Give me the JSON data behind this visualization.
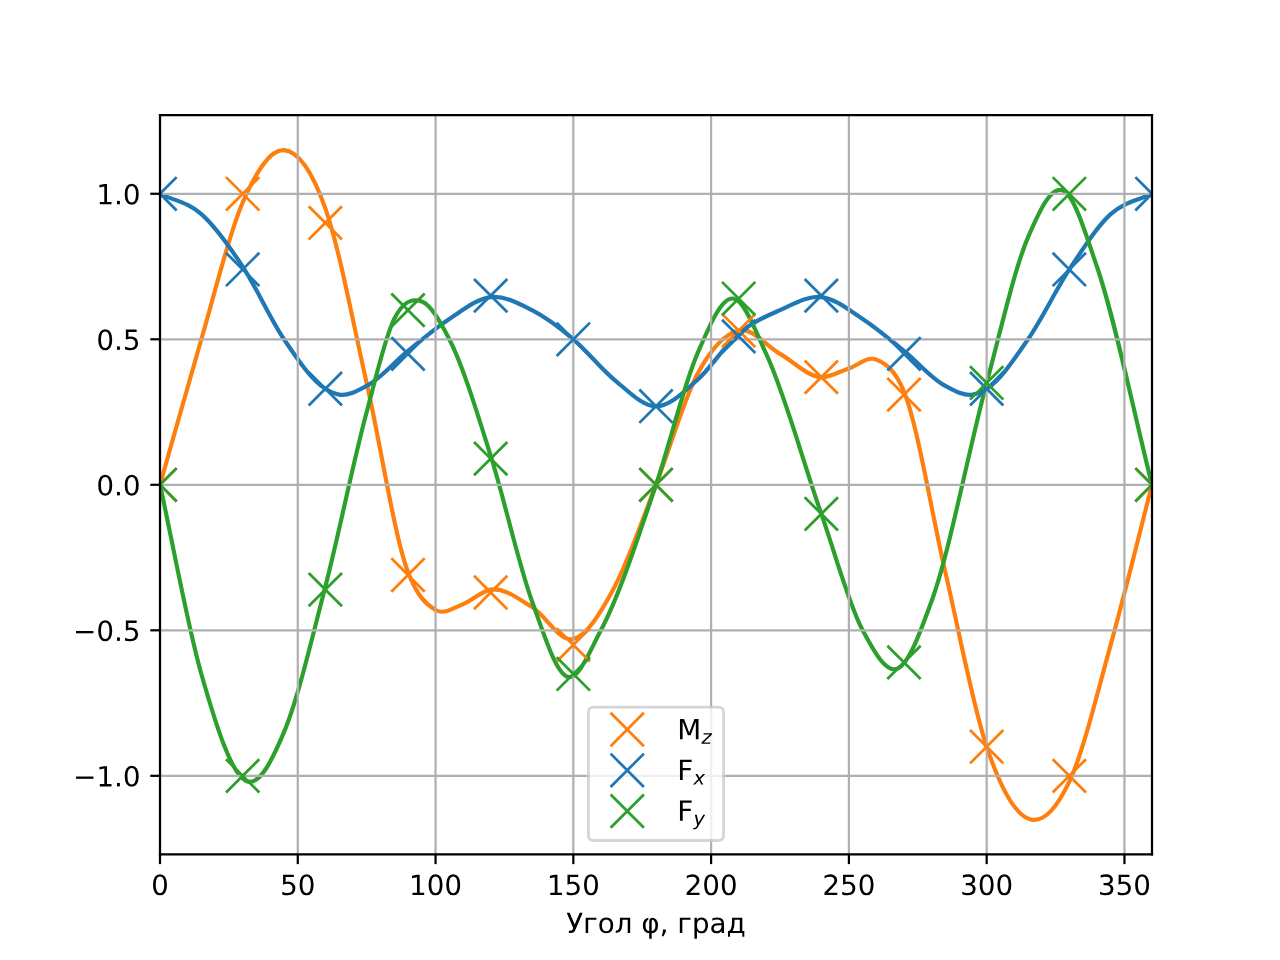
{
  "chart_data": {
    "type": "line",
    "xlabel": "Угол φ, град",
    "xlim": [
      0,
      360
    ],
    "xticks": [
      0,
      50,
      100,
      150,
      200,
      250,
      300,
      350
    ],
    "ylim": [
      -1.27,
      1.27
    ],
    "yticks": [
      {
        "value": -1.0,
        "label": "−1.0"
      },
      {
        "value": -0.5,
        "label": "−0.5"
      },
      {
        "value": 0.0,
        "label": "0.0"
      },
      {
        "value": 0.5,
        "label": "0.5"
      },
      {
        "value": 1.0,
        "label": "1.0"
      }
    ],
    "grid": true,
    "legend": "bottom",
    "marker": "none",
    "line_style": "solid",
    "series": [
      {
        "color": "#ff7f0e",
        "x": [
          0,
          15,
          30,
          45,
          60,
          75,
          90,
          100,
          110,
          120,
          135,
          150,
          165,
          180,
          195,
          210,
          225,
          240,
          250,
          260,
          270,
          285,
          300,
          316,
          330,
          345,
          360
        ],
        "values": [
          0,
          0.5,
          0.97,
          1.15,
          0.95,
          0.35,
          -0.3,
          -0.43,
          -0.41,
          -0.36,
          -0.42,
          -0.53,
          -0.35,
          0,
          0.38,
          0.53,
          0.45,
          0.37,
          0.4,
          0.43,
          0.32,
          -0.3,
          -0.9,
          -1.15,
          -1.02,
          -0.55,
          0
        ]
      },
      {
        "color": "#1f77b4",
        "x": [
          0,
          15,
          30,
          45,
          60,
          65,
          75,
          90,
          105,
          120,
          135,
          150,
          165,
          180,
          195,
          210,
          225,
          240,
          255,
          270,
          285,
          295,
          300,
          315,
          330,
          345,
          360
        ],
        "values": [
          1.0,
          0.93,
          0.75,
          0.5,
          0.33,
          0.31,
          0.34,
          0.46,
          0.57,
          0.645,
          0.6,
          0.5,
          0.36,
          0.27,
          0.36,
          0.52,
          0.6,
          0.645,
          0.57,
          0.46,
          0.34,
          0.31,
          0.33,
          0.5,
          0.74,
          0.93,
          1.0
        ]
      },
      {
        "color": "#2ca02c",
        "x": [
          0,
          15,
          32,
          45,
          60,
          75,
          85,
          95,
          105,
          120,
          135,
          148,
          160,
          180,
          195,
          208,
          220,
          240,
          255,
          268,
          280,
          300,
          315,
          328,
          340,
          360
        ],
        "values": [
          0,
          -0.65,
          -1.02,
          -0.85,
          -0.35,
          0.25,
          0.57,
          0.63,
          0.5,
          0.1,
          -0.4,
          -0.66,
          -0.5,
          0,
          0.45,
          0.64,
          0.45,
          -0.1,
          -0.5,
          -0.63,
          -0.4,
          0.35,
          0.85,
          1.01,
          0.75,
          0
        ]
      },
      {
        "type": "scatter",
        "name": "M$_{z}$",
        "color": "#ff7f0e",
        "marker": "cross",
        "x": [
          0,
          30,
          60,
          90,
          120,
          150,
          180,
          210,
          240,
          270,
          300,
          330,
          360
        ],
        "values": [
          0,
          1.0,
          0.9,
          -0.31,
          -0.37,
          -0.55,
          0,
          0.53,
          0.37,
          0.31,
          -0.9,
          -1.0,
          0
        ]
      },
      {
        "type": "scatter",
        "name": "F$_{x}$",
        "color": "#1f77b4",
        "marker": "cross",
        "x": [
          0,
          30,
          60,
          90,
          120,
          150,
          180,
          210,
          240,
          270,
          300,
          330,
          360
        ],
        "values": [
          1.0,
          0.74,
          0.33,
          0.45,
          0.65,
          0.5,
          0.27,
          0.51,
          0.65,
          0.45,
          0.33,
          0.74,
          1.0
        ]
      },
      {
        "type": "scatter",
        "name": "F$_{y}$",
        "color": "#2ca02c",
        "marker": "cross",
        "x": [
          0,
          30,
          60,
          90,
          120,
          150,
          180,
          210,
          240,
          270,
          300,
          330,
          360
        ],
        "values": [
          0,
          -1.0,
          -0.36,
          0.6,
          0.09,
          -0.65,
          0,
          0.64,
          -0.1,
          -0.61,
          0.35,
          1.0,
          0
        ]
      }
    ]
  }
}
